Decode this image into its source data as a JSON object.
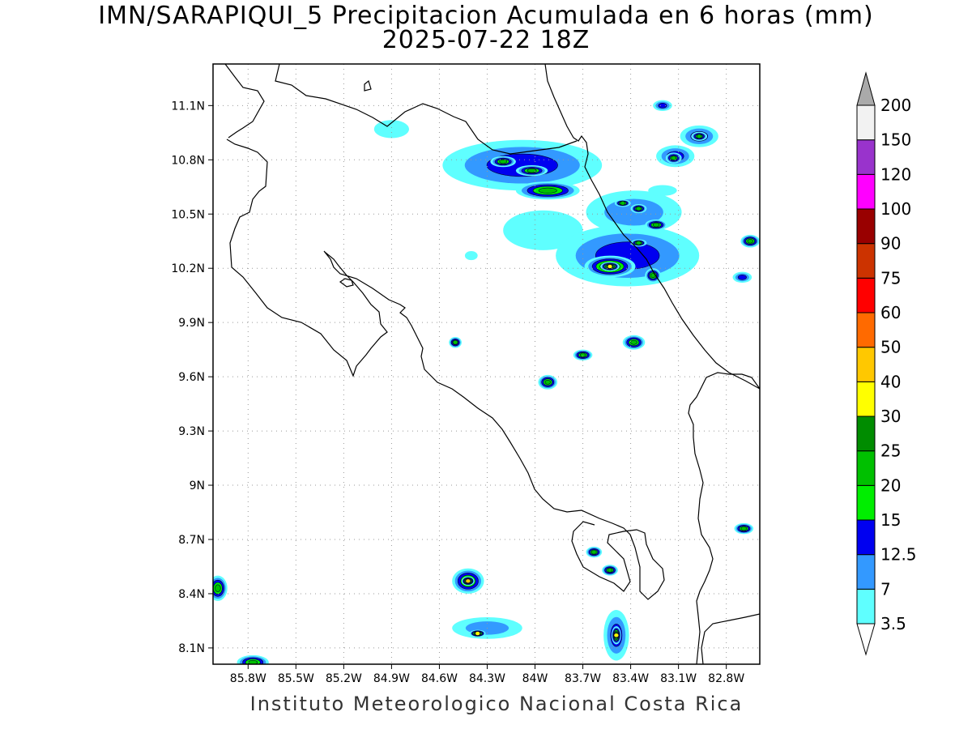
{
  "title": {
    "line1": "IMN/SARAPIQUI_5 Precipitacion Acumulada en 6 horas (mm)",
    "line2": "2025-07-22 18Z"
  },
  "credit": "Instituto Meteorologico Nacional Costa Rica",
  "map": {
    "lon_range": [
      -86.02,
      -82.59
    ],
    "lat_range": [
      8.01,
      11.33
    ],
    "lon_ticks": [
      {
        "value": -85.8,
        "label": "85.8W"
      },
      {
        "value": -85.5,
        "label": "85.5W"
      },
      {
        "value": -85.2,
        "label": "85.2W"
      },
      {
        "value": -84.9,
        "label": "84.9W"
      },
      {
        "value": -84.6,
        "label": "84.6W"
      },
      {
        "value": -84.3,
        "label": "84.3W"
      },
      {
        "value": -84.0,
        "label": "84W"
      },
      {
        "value": -83.7,
        "label": "83.7W"
      },
      {
        "value": -83.4,
        "label": "83.4W"
      },
      {
        "value": -83.1,
        "label": "83.1W"
      },
      {
        "value": -82.8,
        "label": "82.8W"
      }
    ],
    "lat_ticks": [
      {
        "value": 8.1,
        "label": "8.1N"
      },
      {
        "value": 8.4,
        "label": "8.4N"
      },
      {
        "value": 8.7,
        "label": "8.7N"
      },
      {
        "value": 9.0,
        "label": "9N"
      },
      {
        "value": 9.3,
        "label": "9.3N"
      },
      {
        "value": 9.6,
        "label": "9.6N"
      },
      {
        "value": 9.9,
        "label": "9.9N"
      },
      {
        "value": 10.2,
        "label": "10.2N"
      },
      {
        "value": 10.5,
        "label": "10.5N"
      },
      {
        "value": 10.8,
        "label": "10.8N"
      },
      {
        "value": 11.1,
        "label": "11.1N"
      }
    ],
    "grid": true,
    "precip_cells": [
      {
        "lon": -84.08,
        "lat": 10.77,
        "rx": 0.5,
        "ry": 0.14,
        "level": 3
      },
      {
        "lon": -84.2,
        "lat": 10.79,
        "rx": 0.08,
        "ry": 0.03,
        "level": 5
      },
      {
        "lon": -84.02,
        "lat": 10.74,
        "rx": 0.1,
        "ry": 0.03,
        "level": 5
      },
      {
        "lon": -83.92,
        "lat": 10.63,
        "rx": 0.2,
        "ry": 0.05,
        "level": 5
      },
      {
        "lon": -83.95,
        "lat": 10.41,
        "rx": 0.25,
        "ry": 0.11,
        "level": 1
      },
      {
        "lon": -83.42,
        "lat": 10.27,
        "rx": 0.45,
        "ry": 0.17,
        "level": 3
      },
      {
        "lon": -83.53,
        "lat": 10.21,
        "rx": 0.16,
        "ry": 0.06,
        "level": 6
      },
      {
        "lon": -83.53,
        "lat": 10.21,
        "rx": 0.06,
        "ry": 0.025,
        "level": 7
      },
      {
        "lon": -83.38,
        "lat": 10.51,
        "rx": 0.3,
        "ry": 0.12,
        "level": 2
      },
      {
        "lon": -83.45,
        "lat": 10.56,
        "rx": 0.05,
        "ry": 0.02,
        "level": 5
      },
      {
        "lon": -83.35,
        "lat": 10.53,
        "rx": 0.05,
        "ry": 0.025,
        "level": 5
      },
      {
        "lon": -83.24,
        "lat": 10.44,
        "rx": 0.07,
        "ry": 0.03,
        "level": 5
      },
      {
        "lon": -83.26,
        "lat": 10.16,
        "rx": 0.05,
        "ry": 0.04,
        "level": 5
      },
      {
        "lon": -83.35,
        "lat": 10.34,
        "rx": 0.05,
        "ry": 0.02,
        "level": 5
      },
      {
        "lon": -83.12,
        "lat": 10.82,
        "rx": 0.12,
        "ry": 0.06,
        "level": 3
      },
      {
        "lon": -83.13,
        "lat": 10.81,
        "rx": 0.05,
        "ry": 0.03,
        "level": 5
      },
      {
        "lon": -82.97,
        "lat": 10.93,
        "rx": 0.12,
        "ry": 0.06,
        "level": 3
      },
      {
        "lon": -82.97,
        "lat": 10.93,
        "rx": 0.05,
        "ry": 0.025,
        "level": 5
      },
      {
        "lon": -83.2,
        "lat": 11.1,
        "rx": 0.06,
        "ry": 0.03,
        "level": 3
      },
      {
        "lon": -82.65,
        "lat": 10.35,
        "rx": 0.06,
        "ry": 0.035,
        "level": 5
      },
      {
        "lon": -82.7,
        "lat": 10.15,
        "rx": 0.06,
        "ry": 0.03,
        "level": 3
      },
      {
        "lon": -84.42,
        "lat": 8.47,
        "rx": 0.1,
        "ry": 0.07,
        "level": 5
      },
      {
        "lon": -84.42,
        "lat": 8.47,
        "rx": 0.04,
        "ry": 0.025,
        "level": 8
      },
      {
        "lon": -84.3,
        "lat": 8.21,
        "rx": 0.22,
        "ry": 0.06,
        "level": 2
      },
      {
        "lon": -84.36,
        "lat": 8.18,
        "rx": 0.05,
        "ry": 0.02,
        "level": 7
      },
      {
        "lon": -83.49,
        "lat": 8.17,
        "rx": 0.08,
        "ry": 0.14,
        "level": 3
      },
      {
        "lon": -83.49,
        "lat": 8.17,
        "rx": 0.03,
        "ry": 0.05,
        "level": 7
      },
      {
        "lon": -83.92,
        "lat": 9.57,
        "rx": 0.06,
        "ry": 0.04,
        "level": 5
      },
      {
        "lon": -83.7,
        "lat": 9.72,
        "rx": 0.06,
        "ry": 0.03,
        "level": 5
      },
      {
        "lon": -83.38,
        "lat": 9.79,
        "rx": 0.07,
        "ry": 0.04,
        "level": 5
      },
      {
        "lon": -84.5,
        "lat": 9.79,
        "rx": 0.04,
        "ry": 0.03,
        "level": 5
      },
      {
        "lon": -83.63,
        "lat": 8.63,
        "rx": 0.05,
        "ry": 0.03,
        "level": 5
      },
      {
        "lon": -83.53,
        "lat": 8.53,
        "rx": 0.05,
        "ry": 0.03,
        "level": 5
      },
      {
        "lon": -82.69,
        "lat": 8.76,
        "rx": 0.06,
        "ry": 0.03,
        "level": 5
      },
      {
        "lon": -85.99,
        "lat": 8.43,
        "rx": 0.06,
        "ry": 0.07,
        "level": 5
      },
      {
        "lon": -85.77,
        "lat": 8.02,
        "rx": 0.1,
        "ry": 0.04,
        "level": 5
      },
      {
        "lon": -84.9,
        "lat": 10.97,
        "rx": 0.11,
        "ry": 0.05,
        "level": 1
      },
      {
        "lon": -84.4,
        "lat": 10.27,
        "rx": 0.04,
        "ry": 0.025,
        "level": 1
      },
      {
        "lon": -83.2,
        "lat": 10.63,
        "rx": 0.09,
        "ry": 0.03,
        "level": 0
      }
    ]
  },
  "colorbar": {
    "levels": [
      "3.5",
      "7",
      "12.5",
      "15",
      "20",
      "25",
      "30",
      "40",
      "50",
      "60",
      "75",
      "90",
      "100",
      "120",
      "150",
      "200"
    ],
    "colors": [
      "#ffffff",
      "#5fffff",
      "#3399ff",
      "#0000f0",
      "#00ee00",
      "#00c000",
      "#008c00",
      "#ffff00",
      "#ffc800",
      "#ff6a00",
      "#ff0000",
      "#cc3300",
      "#990000",
      "#ff00ff",
      "#9933cc",
      "#f2f2f2",
      "#aaaaaa"
    ]
  }
}
